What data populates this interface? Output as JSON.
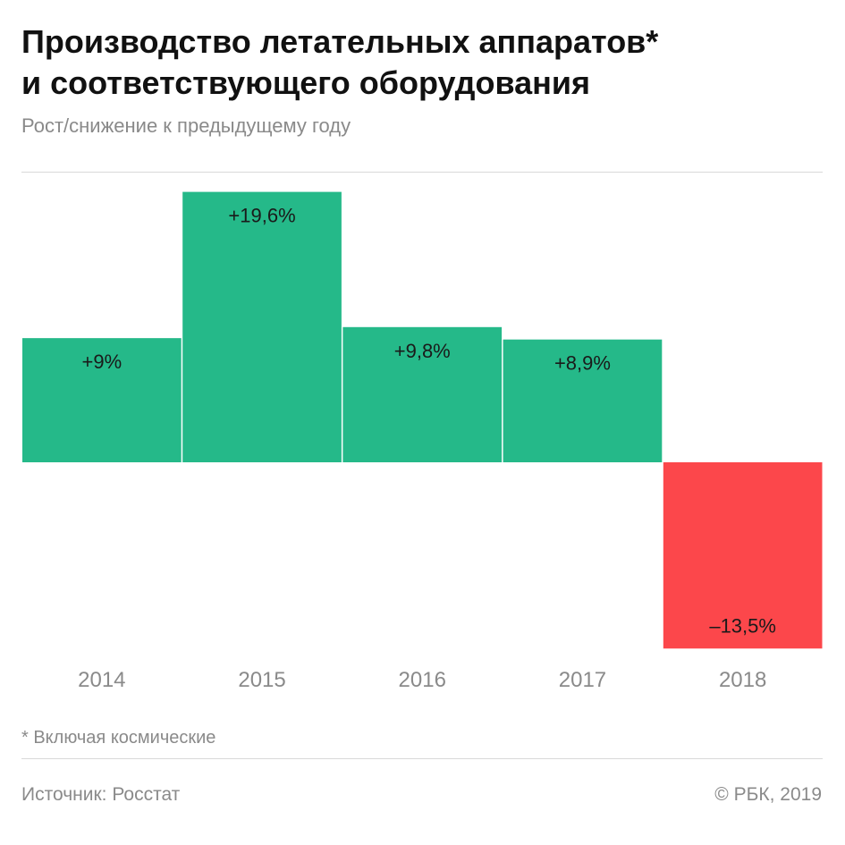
{
  "header": {
    "title_line1": "Производство летательных аппаратов*",
    "title_line2": "и соответствующего оборудования",
    "subtitle": "Рост/снижение к предыдущему году"
  },
  "chart_data": {
    "type": "bar",
    "categories": [
      "2014",
      "2015",
      "2016",
      "2017",
      "2018"
    ],
    "values": [
      9,
      19.6,
      9.8,
      8.9,
      -13.5
    ],
    "value_labels": [
      "+9%",
      "+19,6%",
      "+9,8%",
      "+8,9%",
      "–13,5%"
    ],
    "unit": "%",
    "ylim": [
      -13.5,
      21
    ],
    "grid": false,
    "colors": {
      "positive": "#25b989",
      "negative": "#fc474b"
    }
  },
  "footer": {
    "note": "* Включая космические",
    "source": "Источник: Росстат",
    "copyright": "© РБК, 2019"
  }
}
